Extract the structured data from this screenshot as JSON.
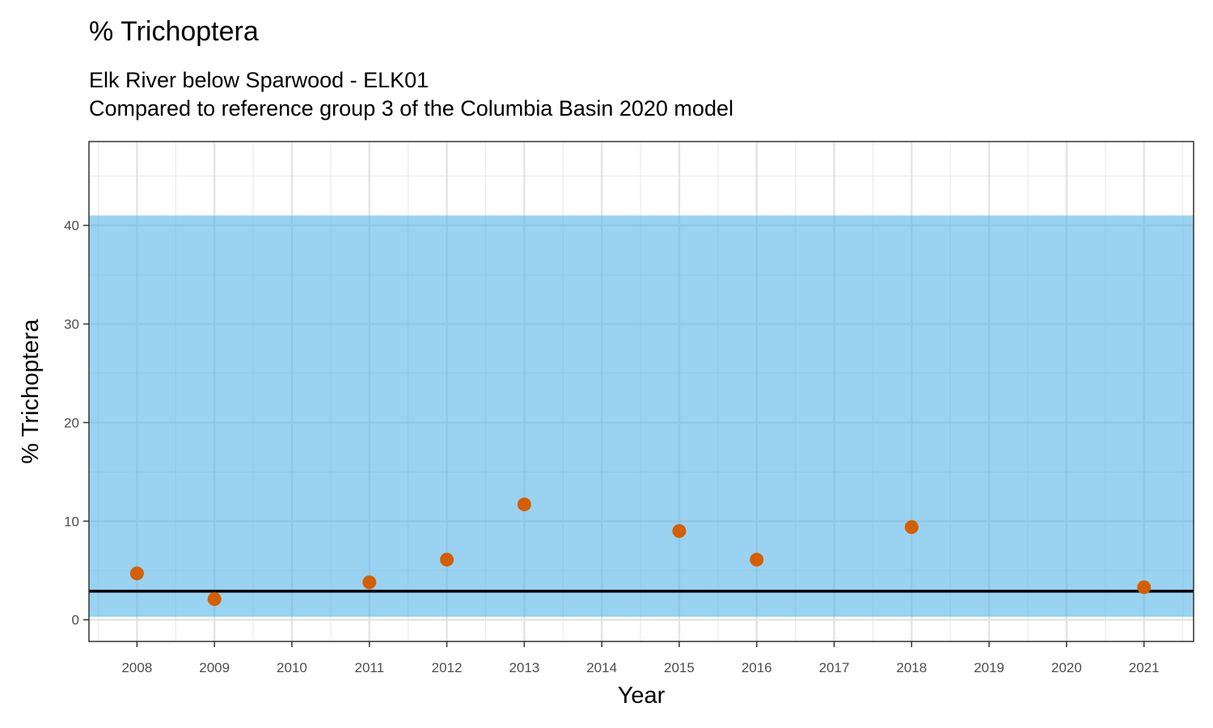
{
  "chart_data": {
    "type": "scatter",
    "title": "% Trichoptera",
    "subtitle_lines": [
      "Elk River below Sparwood - ELK01",
      "Compared to reference group 3 of the Columbia Basin 2020 model"
    ],
    "xlabel": "Year",
    "ylabel": "% Trichoptera",
    "x_ticks": [
      2008,
      2009,
      2010,
      2011,
      2012,
      2013,
      2014,
      2015,
      2016,
      2017,
      2018,
      2019,
      2020,
      2021
    ],
    "y_ticks": [
      0,
      10,
      20,
      30,
      40
    ],
    "xlim": [
      2007.38,
      2021.64
    ],
    "ylim": [
      -2.2,
      48.5
    ],
    "grid": true,
    "series": [
      {
        "x": [
          2008,
          2009,
          2011,
          2012,
          2013,
          2015,
          2016,
          2018,
          2021
        ],
        "y": [
          4.7,
          2.1,
          3.8,
          6.1,
          11.7,
          9.0,
          6.1,
          9.4,
          3.3
        ],
        "color": "#D55E00"
      }
    ],
    "reference_band": {
      "ymin": 0.3,
      "ymax": 41.0,
      "color": "#56B4E9"
    },
    "reference_line": {
      "y": 2.9,
      "color": "#000000"
    }
  }
}
